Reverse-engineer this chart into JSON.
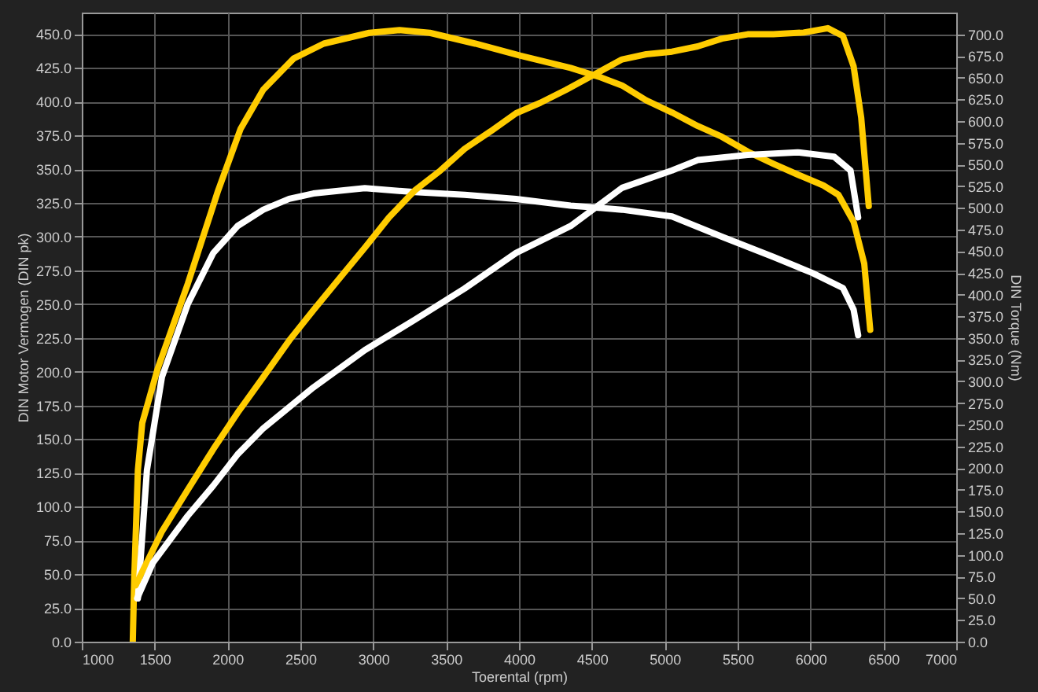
{
  "chart_data": {
    "type": "line",
    "xlabel": "Toerental (rpm)",
    "ylabel": "DIN Motor Vermogen (DIN pk)",
    "y2label": "DIN Torque (Nm)",
    "xlim": [
      1000,
      7000
    ],
    "xticks": [
      1000,
      1500,
      2000,
      2500,
      3000,
      3500,
      4000,
      4500,
      5000,
      5500,
      6000,
      6500,
      7000
    ],
    "ylim": [
      0,
      466
    ],
    "yticks": [
      {
        "value": 0,
        "label": "0.0"
      },
      {
        "value": 25,
        "label": "25.0"
      },
      {
        "value": 50,
        "label": "50.0"
      },
      {
        "value": 75,
        "label": "75.0"
      },
      {
        "value": 100,
        "label": "100.0"
      },
      {
        "value": 125,
        "label": "125.0"
      },
      {
        "value": 150,
        "label": "150.0"
      },
      {
        "value": 175,
        "label": "175.0"
      },
      {
        "value": 200,
        "label": "200.0"
      },
      {
        "value": 225,
        "label": "225.0"
      },
      {
        "value": 250,
        "label": "250.0"
      },
      {
        "value": 275,
        "label": "275.0"
      },
      {
        "value": 300,
        "label": "300.0"
      },
      {
        "value": 325,
        "label": "325.0"
      },
      {
        "value": 350,
        "label": "350.0"
      },
      {
        "value": 375,
        "label": "375.0"
      },
      {
        "value": 400,
        "label": "400.0"
      },
      {
        "value": 425,
        "label": "425.0"
      },
      {
        "value": 450,
        "label": "450.0"
      }
    ],
    "y2lim": [
      0,
      725
    ],
    "y2ticks": [
      {
        "value": 0,
        "label": "0.0"
      },
      {
        "value": 25,
        "label": "25.0"
      },
      {
        "value": 50,
        "label": "50.0"
      },
      {
        "value": 75,
        "label": "75.0"
      },
      {
        "value": 100,
        "label": "100.0"
      },
      {
        "value": 125,
        "label": "125.0"
      },
      {
        "value": 150,
        "label": "150.0"
      },
      {
        "value": 175,
        "label": "175.0"
      },
      {
        "value": 200,
        "label": "200.0"
      },
      {
        "value": 225,
        "label": "225.0"
      },
      {
        "value": 250,
        "label": "250.0"
      },
      {
        "value": 275,
        "label": "275.0"
      },
      {
        "value": 300,
        "label": "300.0"
      },
      {
        "value": 325,
        "label": "325.0"
      },
      {
        "value": 350,
        "label": "350.0"
      },
      {
        "value": 375,
        "label": "375.0"
      },
      {
        "value": 400,
        "label": "400.0"
      },
      {
        "value": 425,
        "label": "425.0"
      },
      {
        "value": 450,
        "label": "450.0"
      },
      {
        "value": 475,
        "label": "475.0"
      },
      {
        "value": 500,
        "label": "500.0"
      },
      {
        "value": 525,
        "label": "525.0"
      },
      {
        "value": 550,
        "label": "550.0"
      },
      {
        "value": 575,
        "label": "575.0"
      },
      {
        "value": 600,
        "label": "600.0"
      },
      {
        "value": 625,
        "label": "625.0"
      },
      {
        "value": 650,
        "label": "650.0"
      },
      {
        "value": 675,
        "label": "675.0"
      },
      {
        "value": 700,
        "label": "700.0"
      }
    ],
    "grid": true,
    "line_style": "solid",
    "marker": "none",
    "series": [
      {
        "color": "#ffcc00",
        "x": [
          1350,
          1360,
          1385,
          1415,
          1520,
          1727,
          1935,
          2090,
          2246,
          2454,
          2660,
          2973,
          3180,
          3388,
          3700,
          4011,
          4354,
          4562,
          4707,
          4873,
          5050,
          5226,
          5392,
          5569,
          5746,
          5912,
          6088,
          6192,
          6296,
          6369,
          6410
        ],
        "values": [
          0,
          47,
          127,
          162,
          202,
          265,
          334,
          380,
          409,
          432,
          443,
          451,
          453,
          451,
          443,
          434,
          425,
          418,
          412,
          401,
          392,
          382,
          374,
          363,
          354,
          346,
          338,
          331,
          311,
          280,
          231
        ]
      },
      {
        "color": "#ffffff",
        "x": [
          1385,
          1447,
          1550,
          1727,
          1903,
          2070,
          2246,
          2423,
          2589,
          2942,
          3285,
          3627,
          3980,
          4354,
          4707,
          5050,
          5392,
          5746,
          6016,
          6223,
          6296,
          6327
        ],
        "values": [
          32,
          127,
          196,
          250,
          288,
          308,
          320,
          328,
          332,
          336,
          333,
          331,
          328,
          323,
          320,
          315,
          300,
          285,
          273,
          262,
          246,
          227
        ]
      },
      {
        "color": "#ffcc00",
        "axis": "y2",
        "x": [
          1370,
          1550,
          1727,
          1903,
          2070,
          2246,
          2423,
          2589,
          2765,
          2942,
          3108,
          3285,
          3461,
          3627,
          3804,
          3980,
          4146,
          4323,
          4707,
          4873,
          5050,
          5226,
          5392,
          5569,
          5746,
          5953,
          6119,
          6223,
          6296,
          6348,
          6400
        ],
        "values": [
          65,
          127,
          175,
          222,
          264,
          305,
          347,
          382,
          418,
          454,
          489,
          520,
          543,
          568,
          588,
          609,
          621,
          636,
          671,
          677,
          680,
          686,
          695,
          700,
          700,
          702,
          707,
          698,
          663,
          604,
          502
        ]
      },
      {
        "color": "#ffffff",
        "axis": "y2",
        "x": [
          1380,
          1488,
          1727,
          1903,
          2070,
          2246,
          2589,
          2942,
          3285,
          3627,
          3980,
          4354,
          4707,
          5050,
          5226,
          5569,
          5912,
          6161,
          6275,
          6327
        ],
        "values": [
          50,
          91,
          145,
          180,
          216,
          246,
          293,
          336,
          371,
          407,
          448,
          479,
          523,
          543,
          555,
          561,
          564,
          559,
          543,
          489
        ]
      }
    ]
  }
}
